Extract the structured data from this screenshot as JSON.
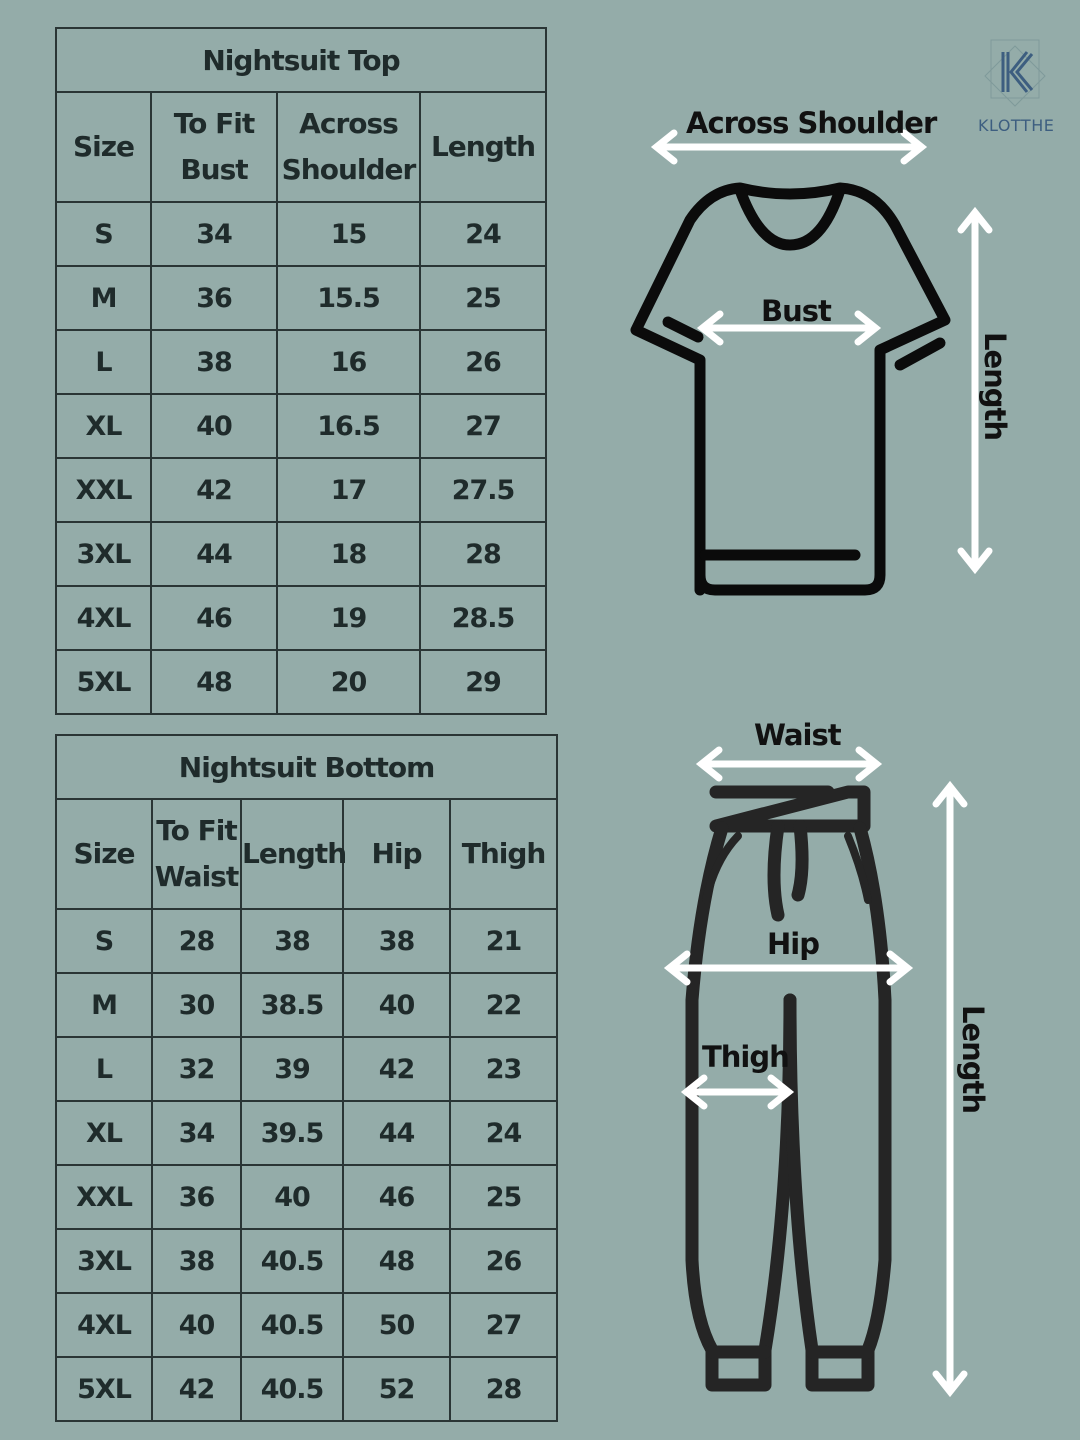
{
  "brand": {
    "name": "KLOTTHE",
    "logo_letter": "K",
    "accent": "#3d5e80"
  },
  "colors": {
    "background": "#94aca9",
    "text": "#1f2b2b",
    "arrow": "#ffffff"
  },
  "top_table": {
    "title": "Nightsuit Top",
    "headers": [
      "Size",
      "To Fit Bust",
      "Across Shoulder",
      "Length"
    ],
    "rows": [
      [
        "S",
        "34",
        "15",
        "24"
      ],
      [
        "M",
        "36",
        "15.5",
        "25"
      ],
      [
        "L",
        "38",
        "16",
        "26"
      ],
      [
        "XL",
        "40",
        "16.5",
        "27"
      ],
      [
        "XXL",
        "42",
        "17",
        "27.5"
      ],
      [
        "3XL",
        "44",
        "18",
        "28"
      ],
      [
        "4XL",
        "46",
        "19",
        "28.5"
      ],
      [
        "5XL",
        "48",
        "20",
        "29"
      ]
    ]
  },
  "bottom_table": {
    "title": "Nightsuit Bottom",
    "headers": [
      "Size",
      "To Fit Waist",
      "Length",
      "Hip",
      "Thigh"
    ],
    "rows": [
      [
        "S",
        "28",
        "38",
        "38",
        "21"
      ],
      [
        "M",
        "30",
        "38.5",
        "40",
        "22"
      ],
      [
        "L",
        "32",
        "39",
        "42",
        "23"
      ],
      [
        "XL",
        "34",
        "39.5",
        "44",
        "24"
      ],
      [
        "XXL",
        "36",
        "40",
        "46",
        "25"
      ],
      [
        "3XL",
        "38",
        "40.5",
        "48",
        "26"
      ],
      [
        "4XL",
        "40",
        "40.5",
        "50",
        "27"
      ],
      [
        "5XL",
        "42",
        "40.5",
        "52",
        "28"
      ]
    ]
  },
  "top_diagram": {
    "across_shoulder": "Across Shoulder",
    "bust": "Bust",
    "length": "Length"
  },
  "bottom_diagram": {
    "waist": "Waist",
    "hip": "Hip",
    "thigh": "Thigh",
    "length": "Length"
  }
}
